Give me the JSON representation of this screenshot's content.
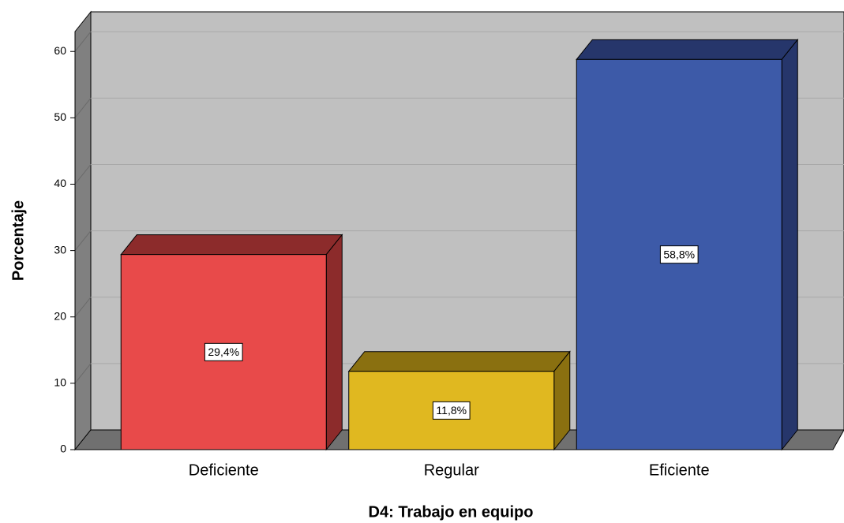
{
  "chart_data": {
    "type": "bar3d",
    "x_label": "D4: Trabajo en equipo",
    "y_label": "Porcentaje",
    "categories": [
      "Deficiente",
      "Regular",
      "Eficiente"
    ],
    "values": [
      29.4,
      11.8,
      58.8
    ],
    "value_labels": [
      "29,4%",
      "11,8%",
      "58,8%"
    ],
    "colors": [
      "#e84a4a",
      "#e0b820",
      "#3d5aa8"
    ],
    "side_colors": [
      "#8c2b2b",
      "#8a7010",
      "#26366b"
    ],
    "ylim": [
      0,
      63
    ],
    "yticks": [
      0,
      10,
      20,
      30,
      40,
      50,
      60
    ],
    "grid": true
  }
}
